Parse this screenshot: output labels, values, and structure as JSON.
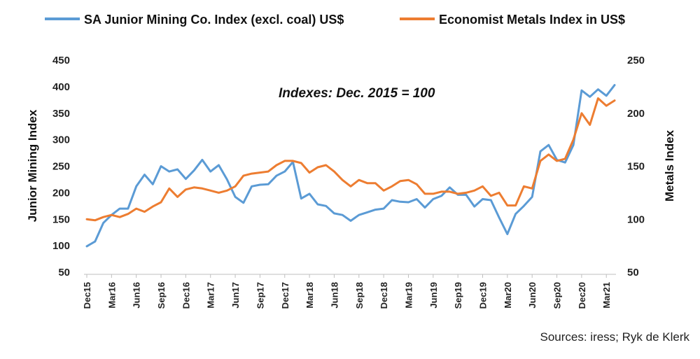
{
  "chart_data": {
    "type": "line",
    "annotation": "Indexes: Dec. 2015 = 100",
    "source": "Sources: iress; Ryk de Klerk",
    "y_left": {
      "label": "Junior Mining Index",
      "range": [
        50,
        450
      ],
      "ticks": [
        50,
        100,
        150,
        200,
        250,
        300,
        350,
        400,
        450
      ]
    },
    "y_right": {
      "label": "Metals Index",
      "range": [
        50,
        250
      ],
      "ticks": [
        50,
        100,
        150,
        200,
        250
      ]
    },
    "x_tick_labels": [
      "Dec15",
      "Mar16",
      "Jun16",
      "Sep16",
      "Dec16",
      "Mar17",
      "Jun17",
      "Sep17",
      "Dec17",
      "Mar18",
      "Jun18",
      "Sep18",
      "Dec18",
      "Mar19",
      "Jun19",
      "Sep19",
      "Dec19",
      "Mar20",
      "Jun20",
      "Sep20",
      "Dec20",
      "Mar21"
    ],
    "months": [
      "Dec15",
      "Jan16",
      "Feb16",
      "Mar16",
      "Apr16",
      "May16",
      "Jun16",
      "Jul16",
      "Aug16",
      "Sep16",
      "Oct16",
      "Nov16",
      "Dec16",
      "Jan17",
      "Feb17",
      "Mar17",
      "Apr17",
      "May17",
      "Jun17",
      "Jul17",
      "Aug17",
      "Sep17",
      "Oct17",
      "Nov17",
      "Dec17",
      "Jan18",
      "Feb18",
      "Mar18",
      "Apr18",
      "May18",
      "Jun18",
      "Jul18",
      "Aug18",
      "Sep18",
      "Oct18",
      "Nov18",
      "Dec18",
      "Jan19",
      "Feb19",
      "Mar19",
      "Apr19",
      "May19",
      "Jun19",
      "Jul19",
      "Aug19",
      "Sep19",
      "Oct19",
      "Nov19",
      "Dec19",
      "Jan20",
      "Feb20",
      "Mar20",
      "Apr20",
      "May20",
      "Jun20",
      "Jul20",
      "Aug20",
      "Sep20",
      "Oct20",
      "Nov20",
      "Dec20",
      "Jan21",
      "Feb21",
      "Mar21",
      "Apr21"
    ],
    "legend_position": "top",
    "grid": false,
    "series": [
      {
        "name": "SA Junior Mining Co. Index (excl. coal) US$",
        "axis": "left",
        "color": "#5b9bd5",
        "values": [
          99,
          108,
          143,
          158,
          170,
          170,
          212,
          234,
          216,
          250,
          240,
          244,
          226,
          242,
          262,
          240,
          252,
          225,
          192,
          181,
          212,
          215,
          216,
          232,
          240,
          258,
          189,
          198,
          178,
          175,
          161,
          158,
          147,
          158,
          163,
          168,
          170,
          186,
          183,
          182,
          188,
          172,
          188,
          194,
          210,
          196,
          196,
          174,
          188,
          186,
          153,
          122,
          160,
          175,
          192,
          278,
          290,
          262,
          257,
          290,
          393,
          381,
          395,
          383,
          403
        ]
      },
      {
        "name": "Economist Metals Index in US$",
        "axis": "right",
        "color": "#ed7d31",
        "values": [
          100,
          99,
          102,
          104,
          102,
          105,
          110,
          107,
          112,
          116,
          129,
          121,
          128,
          130,
          129,
          127,
          125,
          127,
          131,
          141,
          143,
          144,
          145,
          151,
          155,
          155,
          153,
          144,
          149,
          151,
          145,
          137,
          131,
          137,
          134,
          134,
          127,
          131,
          136,
          137,
          133,
          124,
          124,
          126,
          126,
          124,
          125,
          127,
          131,
          122,
          125,
          113,
          113,
          131,
          129,
          155,
          161,
          155,
          157,
          175,
          200,
          189,
          214,
          207,
          212
        ]
      }
    ]
  }
}
